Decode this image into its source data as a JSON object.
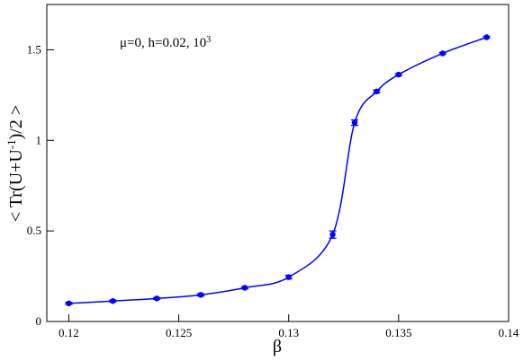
{
  "chart_data": {
    "type": "scatter",
    "xlabel": "β",
    "ylabel": {
      "text": "< Tr(U+U",
      "sup": "-1",
      "tail": ")/2 >"
    },
    "annotation": {
      "text": "μ=0, h=0.02, 10",
      "sup": "3"
    },
    "x": [
      0.12,
      0.122,
      0.124,
      0.126,
      0.128,
      0.13,
      0.132,
      0.133,
      0.134,
      0.135,
      0.137,
      0.139
    ],
    "series": [
      {
        "color": "#0000ff",
        "values": [
          0.1,
          0.113,
          0.127,
          0.147,
          0.186,
          0.245,
          0.48,
          1.098,
          1.27,
          1.363,
          1.48,
          1.569
        ],
        "errors": [
          0.005,
          0.005,
          0.005,
          0.006,
          0.006,
          0.01,
          0.02,
          0.015,
          0.008,
          0.006,
          0.005,
          0.005
        ]
      }
    ],
    "xlim": [
      0.119,
      0.14
    ],
    "xticks": [
      0.12,
      0.125,
      0.13,
      0.135,
      0.14
    ],
    "ylim": [
      0,
      1.75
    ],
    "yticks": [
      0,
      0.5,
      1,
      1.5
    ]
  }
}
